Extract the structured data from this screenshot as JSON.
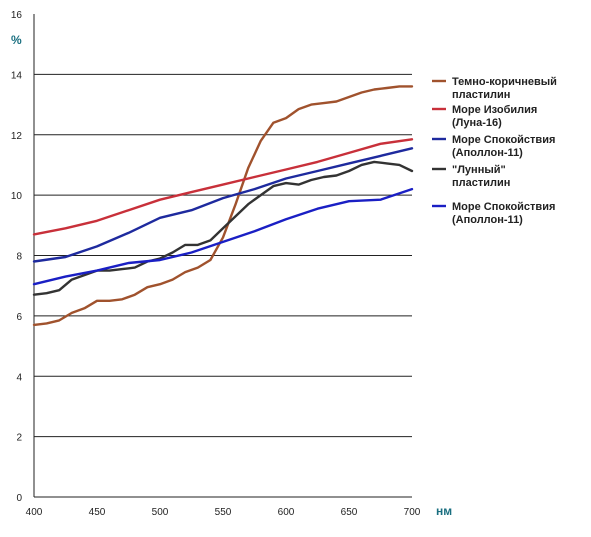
{
  "chart_data": {
    "type": "line",
    "ylabel": "%",
    "xlabel": "нм",
    "xlim": [
      400,
      700
    ],
    "ylim": [
      0,
      16
    ],
    "xticks": [
      400,
      450,
      500,
      550,
      600,
      650,
      700
    ],
    "yticks": [
      0,
      2,
      4,
      6,
      8,
      10,
      12,
      14,
      16
    ],
    "grid": true,
    "legend_position": "right",
    "series": [
      {
        "name": "Темно-коричневый пластилин",
        "legend_lines": [
          "Темно-коричневый",
          "пластилин"
        ],
        "color": "#a0522d",
        "x": [
          400,
          410,
          420,
          430,
          440,
          450,
          460,
          470,
          480,
          490,
          500,
          510,
          520,
          530,
          540,
          550,
          560,
          570,
          580,
          590,
          600,
          610,
          620,
          630,
          640,
          650,
          660,
          670,
          680,
          690,
          700
        ],
        "y": [
          5.7,
          5.75,
          5.85,
          6.1,
          6.25,
          6.5,
          6.5,
          6.55,
          6.7,
          6.95,
          7.05,
          7.2,
          7.45,
          7.6,
          7.85,
          8.6,
          9.7,
          10.9,
          11.8,
          12.4,
          12.55,
          12.85,
          13.0,
          13.05,
          13.1,
          13.25,
          13.4,
          13.5,
          13.55,
          13.6,
          13.6
        ]
      },
      {
        "name": "Море Изобилия (Луна-16)",
        "legend_lines": [
          "Море Изобилия",
          "(Луна-16)"
        ],
        "color": "#c8303a",
        "x": [
          400,
          425,
          450,
          475,
          500,
          525,
          550,
          575,
          600,
          625,
          650,
          675,
          700
        ],
        "y": [
          8.7,
          8.9,
          9.15,
          9.5,
          9.85,
          10.1,
          10.35,
          10.6,
          10.85,
          11.1,
          11.4,
          11.7,
          11.85
        ]
      },
      {
        "name": "Море Спокойствия (Аполлон-11)",
        "legend_lines": [
          "Море Спокойствия",
          "(Аполлон-11)"
        ],
        "color": "#1e2a9e",
        "x": [
          400,
          425,
          450,
          475,
          500,
          525,
          550,
          575,
          600,
          625,
          650,
          675,
          700
        ],
        "y": [
          7.8,
          7.95,
          8.3,
          8.75,
          9.25,
          9.5,
          9.9,
          10.2,
          10.55,
          10.8,
          11.05,
          11.3,
          11.55
        ]
      },
      {
        "name": "\"Лунный\" пластилин",
        "legend_lines": [
          "\"Лунный\"",
          "пластилин"
        ],
        "color": "#333333",
        "x": [
          400,
          410,
          420,
          430,
          440,
          450,
          460,
          470,
          480,
          490,
          500,
          510,
          520,
          530,
          540,
          550,
          560,
          570,
          580,
          590,
          600,
          610,
          620,
          630,
          640,
          650,
          660,
          670,
          680,
          690,
          700
        ],
        "y": [
          6.7,
          6.75,
          6.85,
          7.2,
          7.35,
          7.5,
          7.5,
          7.55,
          7.6,
          7.8,
          7.9,
          8.1,
          8.35,
          8.35,
          8.5,
          8.9,
          9.3,
          9.7,
          10.0,
          10.3,
          10.4,
          10.35,
          10.5,
          10.6,
          10.65,
          10.8,
          11.0,
          11.1,
          11.05,
          11.0,
          10.8
        ]
      },
      {
        "name": "Море Спокойствия (Аполлон-11)",
        "legend_lines": [
          "Море Спокойствия",
          "(Аполлон-11)"
        ],
        "color": "#1a1fc4",
        "x": [
          400,
          425,
          450,
          475,
          500,
          525,
          550,
          575,
          600,
          625,
          650,
          675,
          700
        ],
        "y": [
          7.05,
          7.3,
          7.5,
          7.75,
          7.85,
          8.1,
          8.45,
          8.8,
          9.2,
          9.55,
          9.8,
          9.85,
          10.2
        ]
      }
    ]
  }
}
